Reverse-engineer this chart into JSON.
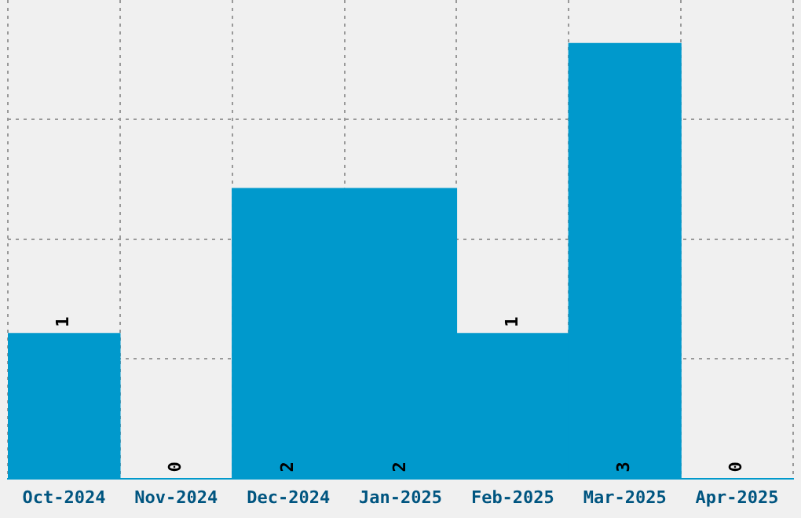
{
  "chart_data": {
    "type": "bar",
    "categories": [
      "Oct-2024",
      "Nov-2024",
      "Dec-2024",
      "Jan-2025",
      "Feb-2025",
      "Mar-2025",
      "Apr-2025"
    ],
    "values": [
      1,
      0,
      2,
      2,
      1,
      3,
      0
    ],
    "color": "#0099cc",
    "ylim": [
      0,
      3.3
    ],
    "tick_labels": "x",
    "grid": true,
    "data_labels": true,
    "legend": false
  }
}
